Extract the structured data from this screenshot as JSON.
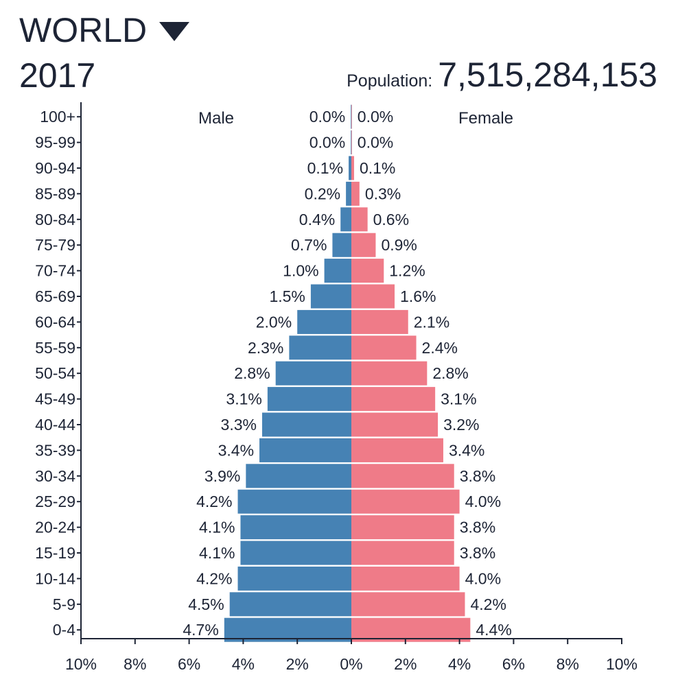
{
  "header": {
    "region": "WORLD",
    "region_dropdown_icon": "triangle-down-icon",
    "year": "2017",
    "population_label": "Population:",
    "population_value": "7,515,284,153"
  },
  "colors": {
    "male": "#4682b4",
    "female": "#ef7b88",
    "text": "#1d2435"
  },
  "chart_data": {
    "type": "bar",
    "orientation": "horizontal",
    "subtype": "population-pyramid",
    "categories": [
      "100+",
      "95-99",
      "90-94",
      "85-89",
      "80-84",
      "75-79",
      "70-74",
      "65-69",
      "60-64",
      "55-59",
      "50-54",
      "45-49",
      "40-44",
      "35-39",
      "30-34",
      "25-29",
      "20-24",
      "15-19",
      "10-14",
      "5-9",
      "0-4"
    ],
    "series": [
      {
        "name": "Male",
        "values": [
          0.0,
          0.0,
          0.1,
          0.2,
          0.4,
          0.7,
          1.0,
          1.5,
          2.0,
          2.3,
          2.8,
          3.1,
          3.3,
          3.4,
          3.9,
          4.2,
          4.1,
          4.1,
          4.2,
          4.5,
          4.7
        ],
        "labels": [
          "0.0%",
          "0.0%",
          "0.1%",
          "0.2%",
          "0.4%",
          "0.7%",
          "1.0%",
          "1.5%",
          "2.0%",
          "2.3%",
          "2.8%",
          "3.1%",
          "3.3%",
          "3.4%",
          "3.9%",
          "4.2%",
          "4.1%",
          "4.1%",
          "4.2%",
          "4.5%",
          "4.7%"
        ]
      },
      {
        "name": "Female",
        "values": [
          0.0,
          0.0,
          0.1,
          0.3,
          0.6,
          0.9,
          1.2,
          1.6,
          2.1,
          2.4,
          2.8,
          3.1,
          3.2,
          3.4,
          3.8,
          4.0,
          3.8,
          3.8,
          4.0,
          4.2,
          4.4
        ],
        "labels": [
          "0.0%",
          "0.0%",
          "0.1%",
          "0.3%",
          "0.6%",
          "0.9%",
          "1.2%",
          "1.6%",
          "2.1%",
          "2.4%",
          "2.8%",
          "3.1%",
          "3.2%",
          "3.4%",
          "3.8%",
          "4.0%",
          "3.8%",
          "3.8%",
          "4.0%",
          "4.2%",
          "4.4%"
        ]
      }
    ],
    "x_ticks": [
      "10%",
      "8%",
      "6%",
      "4%",
      "2%",
      "0%",
      "2%",
      "4%",
      "6%",
      "8%",
      "10%"
    ],
    "x_tick_values": [
      -10,
      -8,
      -6,
      -4,
      -2,
      0,
      2,
      4,
      6,
      8,
      10
    ],
    "xlim": [
      -10,
      10
    ],
    "grid": false,
    "legend": "none"
  }
}
